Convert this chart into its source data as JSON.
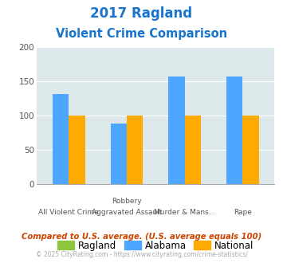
{
  "title_line1": "2017 Ragland",
  "title_line2": "Violent Crime Comparison",
  "title_color": "#1874cd",
  "cat_labels_row1": [
    "All Violent Crime",
    "Robbery",
    "Murder & Mans...",
    "Rape"
  ],
  "cat_labels_row2": [
    "",
    "Aggravated Assault",
    "",
    ""
  ],
  "ragland_values": [
    0,
    0,
    0,
    0
  ],
  "alabama_values": [
    132,
    88,
    157,
    157
  ],
  "national_values": [
    100,
    100,
    100,
    100
  ],
  "ragland_color": "#8dc63f",
  "alabama_color": "#4da6ff",
  "national_color": "#ffaa00",
  "ylim": [
    0,
    200
  ],
  "yticks": [
    0,
    50,
    100,
    150,
    200
  ],
  "plot_bg_color": "#dde8ea",
  "grid_color": "#ffffff",
  "legend_labels": [
    "Ragland",
    "Alabama",
    "National"
  ],
  "comparison_text": "Compared to U.S. average. (U.S. average equals 100)",
  "footer_text": "© 2025 CityRating.com - https://www.cityrating.com/crime-statistics/",
  "comparison_color": "#cc4400",
  "footer_color": "#aaaaaa",
  "footer_link_color": "#4da6ff"
}
